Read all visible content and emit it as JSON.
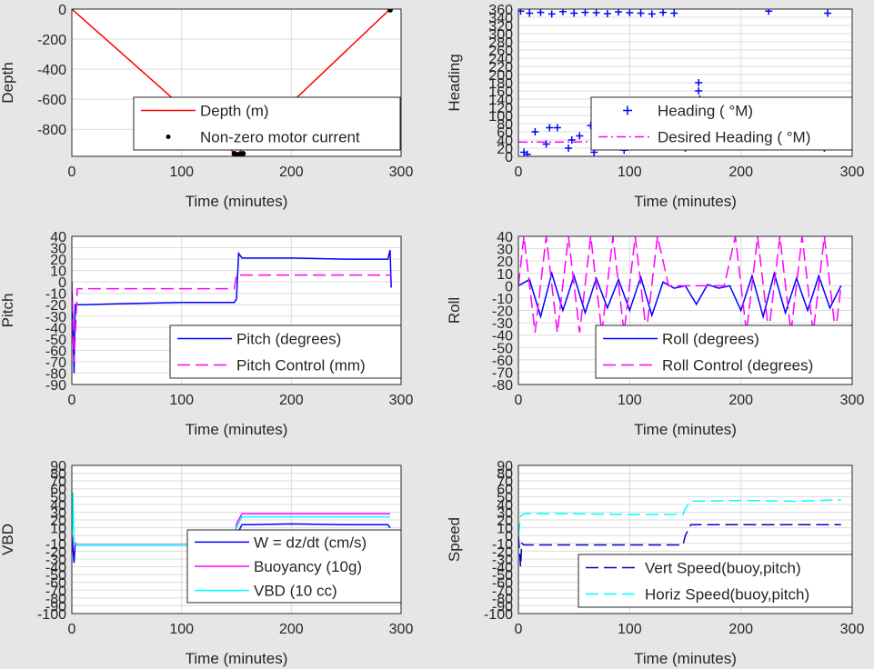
{
  "colors": {
    "background": "#e6e6e6",
    "red": "#ff0000",
    "blue": "#0000ff",
    "magenta": "#ff00ff",
    "cyan": "#00ffff",
    "dark_blue": "#0000cc",
    "black": "#000000"
  },
  "chart_data": [
    {
      "type": "line",
      "xlabel": "Time (minutes)",
      "ylabel": "Depth",
      "xlim": [
        0,
        300
      ],
      "ylim": [
        -980,
        0
      ],
      "xticks": [
        "0",
        "100",
        "200",
        "300"
      ],
      "yticks": [
        "0",
        "-200",
        "-400",
        "-600",
        "-800"
      ],
      "grid": true,
      "legend_position": "bottom-right",
      "series": [
        {
          "name": "Depth (m)",
          "style": "solid",
          "color": "#ff0000",
          "x": [
            0,
            150,
            290
          ],
          "y": [
            0,
            -970,
            0
          ]
        },
        {
          "name": "Non-zero motor current",
          "style": "dot",
          "color": "#000000",
          "x": [
            148,
            150,
            152,
            154,
            156,
            290
          ],
          "y": [
            -962,
            -968,
            -970,
            -966,
            -962,
            -5
          ]
        }
      ]
    },
    {
      "type": "scatter",
      "xlabel": "Time (minutes)",
      "ylabel": "Heading",
      "xlim": [
        0,
        300
      ],
      "ylim": [
        0,
        360
      ],
      "xticks": [
        "0",
        "100",
        "200",
        "300"
      ],
      "yticks": [
        "0",
        "20",
        "40",
        "60",
        "80",
        "100",
        "120",
        "140",
        "160",
        "180",
        "200",
        "220",
        "240",
        "260",
        "280",
        "300",
        "320",
        "340",
        "360"
      ],
      "grid": true,
      "legend_position": "bottom-right",
      "series": [
        {
          "name": "Heading ( °M)",
          "style": "plus",
          "color": "#0000ff",
          "x": [
            2,
            10,
            20,
            30,
            40,
            50,
            60,
            70,
            80,
            90,
            100,
            110,
            120,
            130,
            140,
            150,
            160,
            170,
            180,
            190,
            200,
            210,
            220,
            230,
            240,
            250,
            260,
            270,
            280,
            290,
            5,
            15,
            25,
            35,
            45,
            55,
            65,
            75,
            85,
            95,
            105,
            115,
            125,
            135,
            145,
            155,
            165,
            175,
            185,
            195,
            205,
            215,
            225,
            235,
            245,
            255,
            265,
            275,
            285,
            8,
            28,
            48,
            68,
            88,
            108,
            128,
            148,
            162,
            162,
            163,
            164,
            225,
            278
          ],
          "y": [
            355,
            350,
            352,
            348,
            354,
            350,
            352,
            351,
            349,
            353,
            351,
            350,
            348,
            352,
            350,
            20,
            45,
            80,
            95,
            110,
            60,
            90,
            30,
            115,
            70,
            100,
            50,
            85,
            105,
            40,
            10,
            60,
            30,
            70,
            20,
            50,
            75,
            40,
            85,
            15,
            55,
            90,
            30,
            80,
            65,
            35,
            100,
            25,
            75,
            55,
            95,
            45,
            65,
            110,
            35,
            90,
            60,
            20,
            80,
            5,
            70,
            40,
            10,
            95,
            25,
            60,
            85,
            180,
            160,
            140,
            120,
            355,
            350
          ]
        },
        {
          "name": "Desired Heading ( °M)",
          "style": "dashdot",
          "color": "#ff00ff",
          "x": [
            0,
            50,
            100,
            150,
            200,
            250,
            290
          ],
          "y": [
            35,
            35,
            38,
            35,
            35,
            35,
            35
          ]
        }
      ]
    },
    {
      "type": "line",
      "xlabel": "Time (minutes)",
      "ylabel": "Pitch",
      "xlim": [
        0,
        300
      ],
      "ylim": [
        -90,
        40
      ],
      "xticks": [
        "0",
        "100",
        "200",
        "300"
      ],
      "yticks": [
        "40",
        "30",
        "20",
        "10",
        "0",
        "-10",
        "-20",
        "-30",
        "-40",
        "-50",
        "-60",
        "-70",
        "-80",
        "-90"
      ],
      "grid": true,
      "legend_position": "bottom-right",
      "series": [
        {
          "name": "Pitch (degrees)",
          "style": "solid",
          "color": "#0000ff",
          "x": [
            0,
            2,
            3,
            5,
            10,
            50,
            100,
            148,
            150,
            152,
            155,
            200,
            250,
            288,
            290,
            291
          ],
          "y": [
            0,
            -80,
            -20,
            -20,
            -20,
            -19,
            -18,
            -18,
            -15,
            25,
            21,
            21,
            20,
            20,
            28,
            -5
          ]
        },
        {
          "name": "Pitch Control (mm)",
          "style": "dashed",
          "color": "#ff00ff",
          "x": [
            0,
            2,
            5,
            50,
            100,
            148,
            150,
            155,
            200,
            250,
            291
          ],
          "y": [
            0,
            -70,
            -6,
            -6,
            -6,
            -6,
            6,
            6,
            6,
            6,
            6
          ]
        }
      ]
    },
    {
      "type": "line",
      "xlabel": "Time (minutes)",
      "ylabel": "Roll",
      "xlim": [
        0,
        300
      ],
      "ylim": [
        -80,
        40
      ],
      "xticks": [
        "0",
        "100",
        "200",
        "300"
      ],
      "yticks": [
        "40",
        "30",
        "20",
        "10",
        "0",
        "-10",
        "-20",
        "-30",
        "-40",
        "-50",
        "-60",
        "-70",
        "-80"
      ],
      "grid": true,
      "legend_position": "bottom-right",
      "series": [
        {
          "name": "Roll (degrees)",
          "style": "solid",
          "color": "#0000ff",
          "x": [
            0,
            10,
            20,
            30,
            40,
            50,
            60,
            70,
            80,
            90,
            100,
            110,
            120,
            130,
            140,
            150,
            160,
            170,
            180,
            190,
            200,
            210,
            220,
            230,
            240,
            250,
            260,
            270,
            280,
            290
          ],
          "y": [
            0,
            5,
            -25,
            10,
            -20,
            8,
            -22,
            6,
            -18,
            5,
            -20,
            7,
            -24,
            3,
            -2,
            0,
            -15,
            1,
            -2,
            0,
            -20,
            8,
            -25,
            10,
            -22,
            6,
            -20,
            8,
            -18,
            0
          ]
        },
        {
          "name": "Roll Control (degrees)",
          "style": "dashed",
          "color": "#ff00ff",
          "x": [
            0,
            5,
            15,
            25,
            35,
            45,
            55,
            65,
            75,
            85,
            95,
            105,
            115,
            125,
            135,
            145,
            155,
            165,
            175,
            185,
            195,
            205,
            215,
            225,
            235,
            245,
            255,
            265,
            275,
            285,
            290
          ],
          "y": [
            0,
            40,
            -38,
            40,
            -38,
            40,
            -38,
            40,
            -38,
            40,
            -38,
            40,
            -38,
            40,
            0,
            0,
            0,
            0,
            0,
            0,
            40,
            -38,
            40,
            -38,
            40,
            -38,
            40,
            -38,
            40,
            -38,
            0
          ]
        }
      ]
    },
    {
      "type": "line",
      "xlabel": "Time (minutes)",
      "ylabel": "VBD",
      "xlim": [
        0,
        300
      ],
      "ylim": [
        -100,
        90
      ],
      "xticks": [
        "0",
        "100",
        "200",
        "300"
      ],
      "yticks": [
        "90",
        "80",
        "70",
        "60",
        "50",
        "40",
        "30",
        "20",
        "10",
        "0",
        "-10",
        "-20",
        "-30",
        "-40",
        "-50",
        "-60",
        "-70",
        "-80",
        "-90",
        "-100"
      ],
      "grid": true,
      "legend_position": "bottom-right",
      "series": [
        {
          "name": "W = dz/dt (cm/s)",
          "style": "solid",
          "color": "#0000ff",
          "x": [
            0,
            2,
            3,
            5,
            50,
            100,
            148,
            150,
            155,
            160,
            200,
            250,
            288,
            290
          ],
          "y": [
            0,
            -35,
            -10,
            -12,
            -12,
            -12,
            -12,
            0,
            14,
            14,
            15,
            14,
            14,
            10
          ]
        },
        {
          "name": "Buoyancy (10g)",
          "style": "solid",
          "color": "#ff00ff",
          "x": [
            0,
            2,
            5,
            50,
            100,
            148,
            150,
            155,
            200,
            250,
            290
          ],
          "y": [
            0,
            -10,
            -12,
            -12,
            -12,
            -12,
            15,
            28,
            28,
            28,
            28
          ]
        },
        {
          "name": "VBD (10 cc)",
          "style": "solid",
          "color": "#00ffff",
          "x": [
            0,
            1,
            2,
            5,
            50,
            100,
            148,
            150,
            155,
            200,
            250,
            290
          ],
          "y": [
            0,
            55,
            -10,
            -12,
            -12,
            -12,
            -12,
            10,
            24,
            24,
            24,
            24
          ]
        }
      ]
    },
    {
      "type": "line",
      "xlabel": "Time (minutes)",
      "ylabel": "Speed",
      "xlim": [
        0,
        300
      ],
      "ylim": [
        -100,
        90
      ],
      "xticks": [
        "0",
        "100",
        "200",
        "300"
      ],
      "yticks": [
        "90",
        "80",
        "70",
        "60",
        "50",
        "40",
        "30",
        "20",
        "10",
        "0",
        "-10",
        "-20",
        "-30",
        "-40",
        "-50",
        "-60",
        "-70",
        "-80",
        "-90",
        "-100"
      ],
      "grid": true,
      "legend_position": "bottom-right",
      "series": [
        {
          "name": "Vert Speed(buoy,pitch)",
          "style": "dashed",
          "color": "#0000cc",
          "x": [
            0,
            2,
            3,
            5,
            50,
            100,
            148,
            150,
            155,
            200,
            250,
            290
          ],
          "y": [
            0,
            -40,
            -10,
            -12,
            -12,
            -12,
            -12,
            0,
            14,
            14,
            14,
            14
          ]
        },
        {
          "name": "Horiz Speed(buoy,pitch)",
          "style": "dashed",
          "color": "#00ffff",
          "x": [
            0,
            2,
            5,
            50,
            100,
            148,
            150,
            155,
            200,
            250,
            290
          ],
          "y": [
            0,
            25,
            28,
            28,
            27,
            27,
            35,
            44,
            45,
            44,
            46
          ]
        }
      ]
    }
  ]
}
